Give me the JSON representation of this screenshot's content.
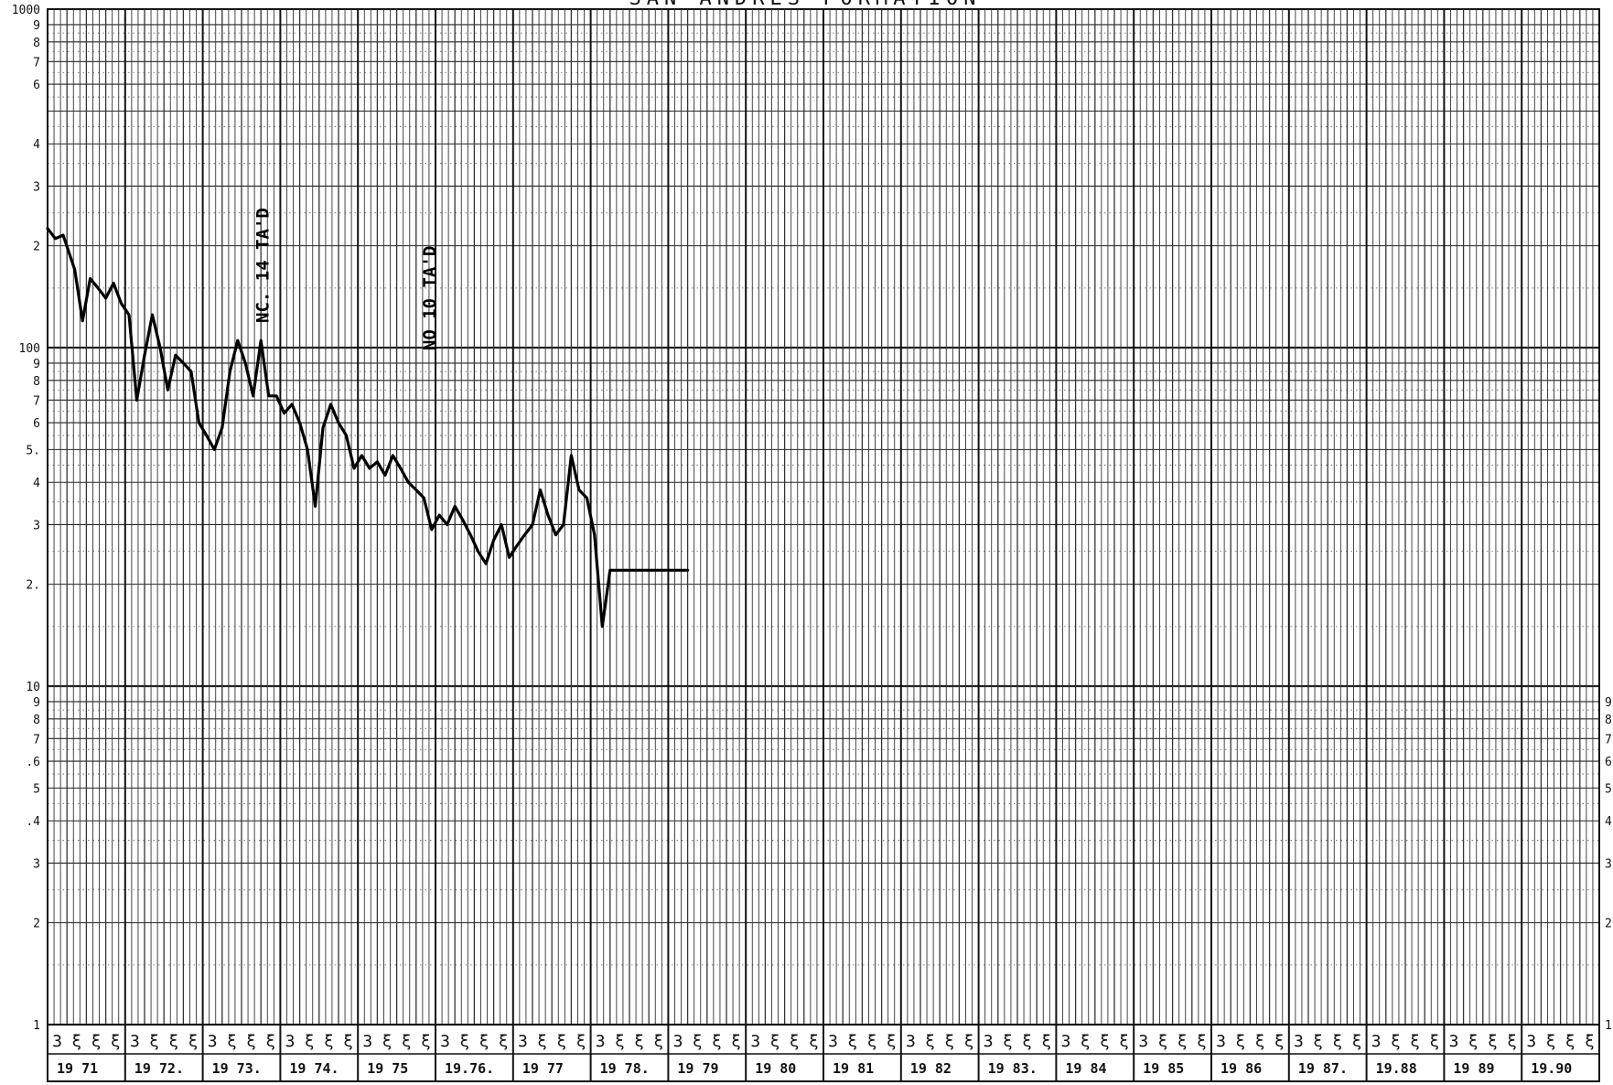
{
  "chart_data": {
    "type": "line",
    "title": "SAN ANDRES FORMATION",
    "xlabel": "",
    "ylabel": "",
    "y_scale": "log",
    "ylim": [
      1,
      1000
    ],
    "grid": true,
    "y_tick_labels": {
      "left": [
        "1000",
        "9",
        "8",
        "7",
        "6",
        "4",
        "3",
        "2",
        "100",
        "9",
        "8",
        "7",
        "6",
        "5.",
        "4",
        "3",
        "2.",
        "10",
        "9",
        "8",
        "7",
        ".6",
        "5",
        ".4",
        "3",
        "2",
        "1"
      ],
      "right": [
        "9",
        "8",
        "7",
        "6",
        "5",
        "4",
        "3",
        "2",
        "1"
      ]
    },
    "y_tick_values": {
      "left": [
        1000,
        900,
        800,
        700,
        600,
        400,
        300,
        200,
        100,
        90,
        80,
        70,
        60,
        50,
        40,
        30,
        20,
        10,
        9,
        8,
        7,
        6,
        5,
        4,
        3,
        2,
        1
      ],
      "right": [
        9,
        8,
        7,
        6,
        5,
        4,
        3,
        2,
        1
      ]
    },
    "year_labels": [
      "19 71",
      "19 72.",
      "19 73.",
      "19 74.",
      "19 75",
      "19.76.",
      "19 77",
      "19 78.",
      "19 79",
      "19 80",
      "19 81",
      "19 82",
      "19 83.",
      "19 84",
      "19 85",
      "19 86",
      "19 87.",
      "19.88",
      "19 89",
      "19.90"
    ],
    "years": [
      1971,
      1972,
      1973,
      1974,
      1975,
      1976,
      1977,
      1978,
      1979,
      1980,
      1981,
      1982,
      1983,
      1984,
      1985,
      1986,
      1987,
      1988,
      1989,
      1990
    ],
    "quarter_marks": [
      "3",
      "ξ",
      "ξ",
      "ξ"
    ],
    "annotations": [
      {
        "text": "NC. 14 TA'D",
        "x": 1973.85,
        "y": 175
      },
      {
        "text": "NO 10 TA'D",
        "x": 1976.0,
        "y": 140
      }
    ],
    "series": [
      {
        "x": [
          1971.0,
          1971.1,
          1971.2,
          1971.35,
          1971.45,
          1971.55,
          1971.65,
          1971.75,
          1971.85,
          1971.95,
          1972.05,
          1972.15,
          1972.25,
          1972.35,
          1972.45,
          1972.55,
          1972.65,
          1972.75,
          1972.85,
          1972.95,
          1973.05,
          1973.15,
          1973.25,
          1973.35,
          1973.45,
          1973.55,
          1973.65,
          1973.75,
          1973.85,
          1973.95,
          1974.05,
          1974.15,
          1974.25,
          1974.35,
          1974.45,
          1974.55,
          1974.65,
          1974.75,
          1974.85,
          1974.95,
          1975.05,
          1975.15,
          1975.25,
          1975.35,
          1975.45,
          1975.55,
          1975.65,
          1975.75,
          1975.85,
          1975.95,
          1976.05,
          1976.15,
          1976.25,
          1976.35,
          1976.45,
          1976.55,
          1976.65,
          1976.75,
          1976.85,
          1976.95,
          1977.05,
          1977.15,
          1977.25,
          1977.35,
          1977.45,
          1977.55,
          1977.65,
          1977.75,
          1977.85,
          1977.95,
          1978.05,
          1978.15,
          1978.25,
          1978.35,
          1978.45,
          1978.55,
          1978.65,
          1978.75,
          1978.85,
          1978.95,
          1979.05,
          1979.15,
          1979.25
        ],
        "values": [
          225,
          210,
          215,
          170,
          120,
          160,
          150,
          140,
          155,
          135,
          125,
          70,
          95,
          125,
          100,
          75,
          95,
          90,
          85,
          60,
          55,
          50,
          58,
          85,
          105,
          90,
          72,
          105,
          72,
          72,
          64,
          68,
          60,
          50,
          34,
          58,
          68,
          60,
          55,
          44,
          48,
          44,
          46,
          42,
          48,
          44,
          40,
          38,
          36,
          29,
          32,
          30,
          34,
          31,
          28,
          25,
          23,
          27,
          30,
          24,
          26,
          28,
          30,
          38,
          32,
          28,
          30,
          48,
          38,
          36,
          28,
          15,
          22,
          22,
          22,
          22,
          22,
          22,
          22,
          22,
          22,
          22,
          22
        ]
      }
    ]
  }
}
